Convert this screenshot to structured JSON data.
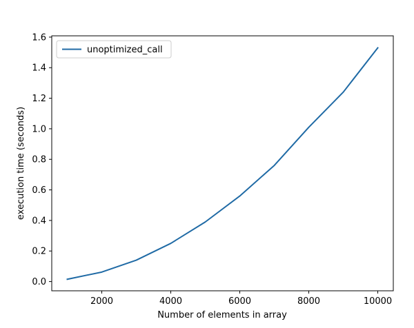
{
  "chart_data": {
    "type": "line",
    "title": "",
    "xlabel": "Number of elements in array",
    "ylabel": "execution time (seconds)",
    "xlim": [
      550,
      10450
    ],
    "ylim": [
      -0.0605,
      1.6085
    ],
    "xticks": [
      2000,
      4000,
      6000,
      8000,
      10000
    ],
    "yticks": [
      0.0,
      0.2,
      0.4,
      0.6,
      0.8,
      1.0,
      1.2,
      1.4,
      1.6
    ],
    "ytick_labels": [
      "0.0",
      "0.2",
      "0.4",
      "0.6",
      "0.8",
      "1.0",
      "1.2",
      "1.4",
      "1.6"
    ],
    "grid": false,
    "legend_position": "top-left",
    "series": [
      {
        "name": "unoptimized_call",
        "color": "#1f6aa5",
        "x": [
          1000,
          2000,
          3000,
          4000,
          5000,
          6000,
          7000,
          8000,
          9000,
          10000
        ],
        "y": [
          0.015,
          0.062,
          0.14,
          0.25,
          0.39,
          0.56,
          0.76,
          1.01,
          1.24,
          1.53
        ]
      }
    ]
  }
}
